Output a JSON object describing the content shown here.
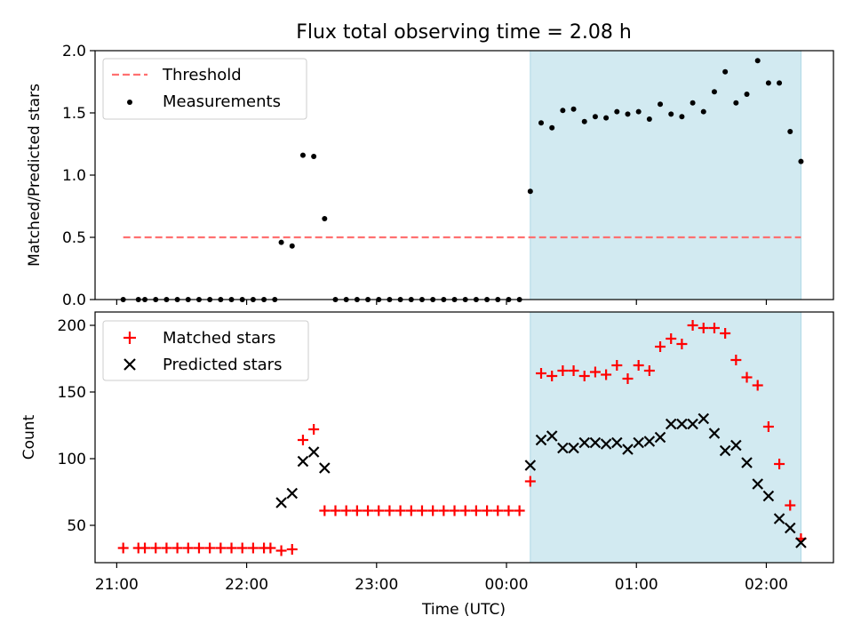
{
  "title": "Flux total observing time = 2.08 h",
  "xlabel": "Time (UTC)",
  "x_tick_labels": [
    "21:00",
    "22:00",
    "23:00",
    "00:00",
    "01:00",
    "02:00"
  ],
  "shaded_interval": [
    "00:11",
    "02:16"
  ],
  "colors": {
    "threshold": "#ff7070",
    "measurements": "#000000",
    "matched": "#ff0000",
    "predicted": "#000000",
    "shade": "#add8e6"
  },
  "chart_data": [
    {
      "type": "scatter",
      "ylabel": "Matched/Predicted stars",
      "ylim": [
        0,
        2.0
      ],
      "xlim": [
        "20:50",
        "02:31"
      ],
      "y_ticks": [
        "0.0",
        "0.5",
        "1.0",
        "1.5",
        "2.0"
      ],
      "legend_position": "top-left",
      "legend": [
        "Threshold",
        "Measurements"
      ],
      "threshold": {
        "name": "Threshold",
        "y": 0.5,
        "x_range": [
          "21:03",
          "02:16"
        ]
      },
      "series": [
        {
          "name": "Measurements",
          "points": [
            [
              "21:03",
              0
            ],
            [
              "21:10",
              0
            ],
            [
              "21:13",
              0
            ],
            [
              "21:18",
              0
            ],
            [
              "21:23",
              0
            ],
            [
              "21:28",
              0
            ],
            [
              "21:33",
              0
            ],
            [
              "21:38",
              0
            ],
            [
              "21:43",
              0
            ],
            [
              "21:48",
              0
            ],
            [
              "21:53",
              0
            ],
            [
              "21:58",
              0
            ],
            [
              "22:03",
              0
            ],
            [
              "22:08",
              0
            ],
            [
              "22:13",
              0
            ],
            [
              "22:16",
              0.46
            ],
            [
              "22:21",
              0.43
            ],
            [
              "22:26",
              1.16
            ],
            [
              "22:31",
              1.15
            ],
            [
              "22:36",
              0.65
            ],
            [
              "22:41",
              0
            ],
            [
              "22:46",
              0
            ],
            [
              "22:51",
              0
            ],
            [
              "22:56",
              0
            ],
            [
              "23:01",
              0
            ],
            [
              "23:06",
              0
            ],
            [
              "23:11",
              0
            ],
            [
              "23:16",
              0
            ],
            [
              "23:21",
              0
            ],
            [
              "23:26",
              0
            ],
            [
              "23:31",
              0
            ],
            [
              "23:36",
              0
            ],
            [
              "23:41",
              0
            ],
            [
              "23:46",
              0
            ],
            [
              "23:51",
              0
            ],
            [
              "23:56",
              0
            ],
            [
              "00:01",
              0
            ],
            [
              "00:06",
              0
            ],
            [
              "00:11",
              0.87
            ],
            [
              "00:16",
              1.42
            ],
            [
              "00:21",
              1.38
            ],
            [
              "00:26",
              1.52
            ],
            [
              "00:31",
              1.53
            ],
            [
              "00:36",
              1.43
            ],
            [
              "00:41",
              1.47
            ],
            [
              "00:46",
              1.46
            ],
            [
              "00:51",
              1.51
            ],
            [
              "00:56",
              1.49
            ],
            [
              "01:01",
              1.51
            ],
            [
              "01:06",
              1.45
            ],
            [
              "01:11",
              1.57
            ],
            [
              "01:16",
              1.49
            ],
            [
              "01:21",
              1.47
            ],
            [
              "01:26",
              1.58
            ],
            [
              "01:31",
              1.51
            ],
            [
              "01:36",
              1.67
            ],
            [
              "01:41",
              1.83
            ],
            [
              "01:46",
              1.58
            ],
            [
              "01:51",
              1.65
            ],
            [
              "01:56",
              1.92
            ],
            [
              "02:01",
              1.74
            ],
            [
              "02:06",
              1.74
            ],
            [
              "02:11",
              1.35
            ],
            [
              "02:16",
              1.11
            ]
          ]
        }
      ]
    },
    {
      "type": "scatter",
      "ylabel": "Count",
      "ylim": [
        22,
        210
      ],
      "xlim": [
        "20:50",
        "02:31"
      ],
      "y_ticks": [
        "50",
        "100",
        "150",
        "200"
      ],
      "legend_position": "top-left",
      "legend": [
        "Matched stars",
        "Predicted stars"
      ],
      "series": [
        {
          "name": "Matched stars",
          "points": [
            [
              "21:03",
              33
            ],
            [
              "21:10",
              33
            ],
            [
              "21:13",
              33
            ],
            [
              "21:18",
              33
            ],
            [
              "21:23",
              33
            ],
            [
              "21:28",
              33
            ],
            [
              "21:33",
              33
            ],
            [
              "21:38",
              33
            ],
            [
              "21:43",
              33
            ],
            [
              "21:48",
              33
            ],
            [
              "21:53",
              33
            ],
            [
              "21:58",
              33
            ],
            [
              "22:03",
              33
            ],
            [
              "22:08",
              33
            ],
            [
              "22:11",
              33
            ],
            [
              "22:16",
              31
            ],
            [
              "22:21",
              32
            ],
            [
              "22:26",
              114
            ],
            [
              "22:31",
              122
            ],
            [
              "22:36",
              61
            ],
            [
              "22:41",
              61
            ],
            [
              "22:46",
              61
            ],
            [
              "22:51",
              61
            ],
            [
              "22:56",
              61
            ],
            [
              "23:01",
              61
            ],
            [
              "23:06",
              61
            ],
            [
              "23:11",
              61
            ],
            [
              "23:16",
              61
            ],
            [
              "23:21",
              61
            ],
            [
              "23:26",
              61
            ],
            [
              "23:31",
              61
            ],
            [
              "23:36",
              61
            ],
            [
              "23:41",
              61
            ],
            [
              "23:46",
              61
            ],
            [
              "23:51",
              61
            ],
            [
              "23:56",
              61
            ],
            [
              "00:01",
              61
            ],
            [
              "00:06",
              61
            ],
            [
              "00:11",
              83
            ],
            [
              "00:16",
              164
            ],
            [
              "00:21",
              162
            ],
            [
              "00:26",
              166
            ],
            [
              "00:31",
              166
            ],
            [
              "00:36",
              162
            ],
            [
              "00:41",
              165
            ],
            [
              "00:46",
              163
            ],
            [
              "00:51",
              170
            ],
            [
              "00:56",
              160
            ],
            [
              "01:01",
              170
            ],
            [
              "01:06",
              166
            ],
            [
              "01:11",
              184
            ],
            [
              "01:16",
              190
            ],
            [
              "01:21",
              186
            ],
            [
              "01:26",
              200
            ],
            [
              "01:31",
              198
            ],
            [
              "01:36",
              198
            ],
            [
              "01:41",
              194
            ],
            [
              "01:46",
              174
            ],
            [
              "01:51",
              161
            ],
            [
              "01:56",
              155
            ],
            [
              "02:01",
              124
            ],
            [
              "02:06",
              96
            ],
            [
              "02:11",
              65
            ],
            [
              "02:16",
              40
            ]
          ]
        },
        {
          "name": "Predicted stars",
          "points": [
            [
              "22:16",
              67
            ],
            [
              "22:21",
              74
            ],
            [
              "22:26",
              98
            ],
            [
              "22:31",
              105
            ],
            [
              "22:36",
              93
            ],
            [
              "00:11",
              95
            ],
            [
              "00:16",
              114
            ],
            [
              "00:21",
              117
            ],
            [
              "00:26",
              108
            ],
            [
              "00:31",
              108
            ],
            [
              "00:36",
              112
            ],
            [
              "00:41",
              112
            ],
            [
              "00:46",
              111
            ],
            [
              "00:51",
              112
            ],
            [
              "00:56",
              107
            ],
            [
              "01:01",
              112
            ],
            [
              "01:06",
              113
            ],
            [
              "01:11",
              116
            ],
            [
              "01:16",
              126
            ],
            [
              "01:21",
              126
            ],
            [
              "01:26",
              126
            ],
            [
              "01:31",
              130
            ],
            [
              "01:36",
              119
            ],
            [
              "01:41",
              106
            ],
            [
              "01:46",
              110
            ],
            [
              "01:51",
              97
            ],
            [
              "01:56",
              81
            ],
            [
              "02:01",
              72
            ],
            [
              "02:06",
              55
            ],
            [
              "02:11",
              48
            ],
            [
              "02:16",
              37
            ]
          ]
        }
      ]
    }
  ]
}
